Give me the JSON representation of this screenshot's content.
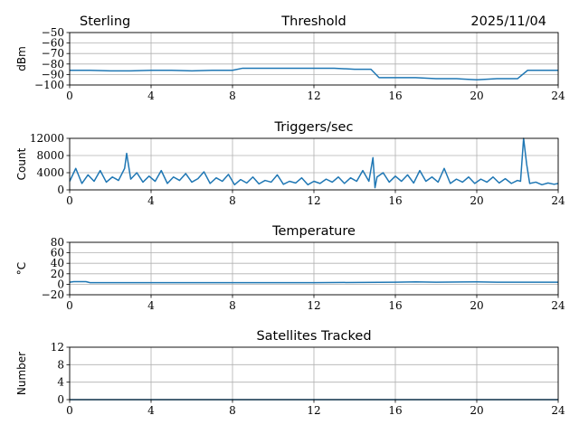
{
  "header": {
    "station": "Sterling",
    "date": "2025/11/04"
  },
  "colors": {
    "line": "#1f77b4",
    "grid": "#b0b0b0"
  },
  "chart_data": [
    {
      "type": "line",
      "title": "Threshold",
      "xlabel": "",
      "ylabel": "dBm",
      "xlim": [
        0,
        24
      ],
      "ylim": [
        -100,
        -50
      ],
      "xticks": [
        0,
        4,
        8,
        12,
        16,
        20,
        24
      ],
      "xtick_labels": [
        "0",
        "4",
        "8",
        "12",
        "16",
        "20",
        "24"
      ],
      "yticks": [
        -100,
        -90,
        -80,
        -70,
        -60,
        -50
      ],
      "ytick_labels": [
        "−100",
        "−90",
        "−80",
        "−70",
        "−60",
        "−50"
      ],
      "series": [
        {
          "name": "Threshold",
          "x": [
            0,
            1,
            2,
            3,
            4,
            5,
            6,
            7,
            8,
            8.5,
            9,
            10,
            11,
            12,
            13,
            14,
            14.8,
            15.2,
            16,
            17,
            18,
            19,
            20,
            21,
            22,
            22.5,
            23,
            24
          ],
          "y": [
            -86,
            -86,
            -86.5,
            -86.5,
            -86,
            -86,
            -86.5,
            -86,
            -86,
            -84,
            -84,
            -84,
            -84,
            -84,
            -84,
            -85,
            -85,
            -93,
            -93,
            -93,
            -94,
            -94,
            -95,
            -94,
            -94,
            -86,
            -86,
            -86
          ]
        }
      ]
    },
    {
      "type": "line",
      "title": "Triggers/sec",
      "xlabel": "",
      "ylabel": "Count",
      "xlim": [
        0,
        24
      ],
      "ylim": [
        0,
        12000
      ],
      "xticks": [
        0,
        4,
        8,
        12,
        16,
        20,
        24
      ],
      "xtick_labels": [
        "0",
        "4",
        "8",
        "12",
        "16",
        "20",
        "24"
      ],
      "yticks": [
        0,
        4000,
        8000,
        12000
      ],
      "ytick_labels": [
        "0",
        "4000",
        "8000",
        "12000"
      ],
      "series": [
        {
          "name": "Triggers",
          "x": [
            0,
            0.3,
            0.6,
            0.9,
            1.2,
            1.5,
            1.8,
            2.1,
            2.4,
            2.7,
            2.8,
            3.0,
            3.3,
            3.6,
            3.9,
            4.2,
            4.5,
            4.8,
            5.1,
            5.4,
            5.7,
            6.0,
            6.3,
            6.6,
            6.9,
            7.2,
            7.5,
            7.8,
            8.1,
            8.4,
            8.7,
            9.0,
            9.3,
            9.6,
            9.9,
            10.2,
            10.5,
            10.8,
            11.1,
            11.4,
            11.7,
            12.0,
            12.3,
            12.6,
            12.9,
            13.2,
            13.5,
            13.8,
            14.1,
            14.4,
            14.7,
            14.9,
            15.0,
            15.1,
            15.4,
            15.7,
            16.0,
            16.3,
            16.6,
            16.9,
            17.2,
            17.5,
            17.8,
            18.1,
            18.4,
            18.7,
            19.0,
            19.3,
            19.6,
            19.9,
            20.2,
            20.5,
            20.8,
            21.1,
            21.4,
            21.7,
            22.0,
            22.15,
            22.3,
            22.45,
            22.6,
            22.9,
            23.2,
            23.5,
            23.8,
            24
          ],
          "y": [
            2000,
            5000,
            1500,
            3500,
            2000,
            4500,
            1800,
            3000,
            2200,
            5000,
            8500,
            2500,
            4000,
            1800,
            3200,
            2000,
            4500,
            1500,
            3000,
            2200,
            3800,
            1800,
            2600,
            4200,
            1500,
            2800,
            2000,
            3600,
            1200,
            2400,
            1600,
            3000,
            1400,
            2200,
            1800,
            3500,
            1300,
            2000,
            1600,
            2800,
            1200,
            2000,
            1500,
            2500,
            1800,
            3000,
            1500,
            2800,
            2000,
            4500,
            2000,
            7500,
            500,
            3000,
            4000,
            1800,
            3200,
            2000,
            3500,
            1600,
            4500,
            2000,
            3000,
            1800,
            5000,
            1500,
            2500,
            1800,
            3000,
            1500,
            2500,
            1800,
            3000,
            1600,
            2600,
            1500,
            2200,
            2000,
            12000,
            6000,
            1500,
            1800,
            1200,
            1600,
            1300,
            1500
          ]
        }
      ]
    },
    {
      "type": "line",
      "title": "Temperature",
      "xlabel": "",
      "ylabel": "°C",
      "xlim": [
        0,
        24
      ],
      "ylim": [
        -20,
        80
      ],
      "xticks": [
        0,
        4,
        8,
        12,
        16,
        20,
        24
      ],
      "xtick_labels": [
        "0",
        "4",
        "8",
        "12",
        "16",
        "20",
        "24"
      ],
      "yticks": [
        -20,
        0,
        20,
        40,
        60,
        80
      ],
      "ytick_labels": [
        "−20",
        "0",
        "20",
        "40",
        "60",
        "80"
      ],
      "series": [
        {
          "name": "Temperature",
          "x": [
            0,
            0.2,
            0.8,
            1,
            4,
            8,
            12,
            16,
            17,
            18,
            20,
            21,
            22,
            24
          ],
          "y": [
            4,
            5,
            5,
            3,
            3,
            3,
            3,
            4,
            4.5,
            4,
            4.5,
            4,
            4,
            4
          ]
        }
      ]
    },
    {
      "type": "line",
      "title": "Satellites Tracked",
      "xlabel": "",
      "ylabel": "Number",
      "xlim": [
        0,
        24
      ],
      "ylim": [
        0,
        12
      ],
      "xticks": [
        0,
        4,
        8,
        12,
        16,
        20,
        24
      ],
      "xtick_labels": [
        "0",
        "4",
        "8",
        "12",
        "16",
        "20",
        "24"
      ],
      "yticks": [
        0,
        4,
        8,
        12
      ],
      "ytick_labels": [
        "0",
        "4",
        "8",
        "12"
      ],
      "series": [
        {
          "name": "Satellites",
          "x": [
            0,
            24
          ],
          "y": [
            0,
            0
          ]
        }
      ]
    }
  ]
}
